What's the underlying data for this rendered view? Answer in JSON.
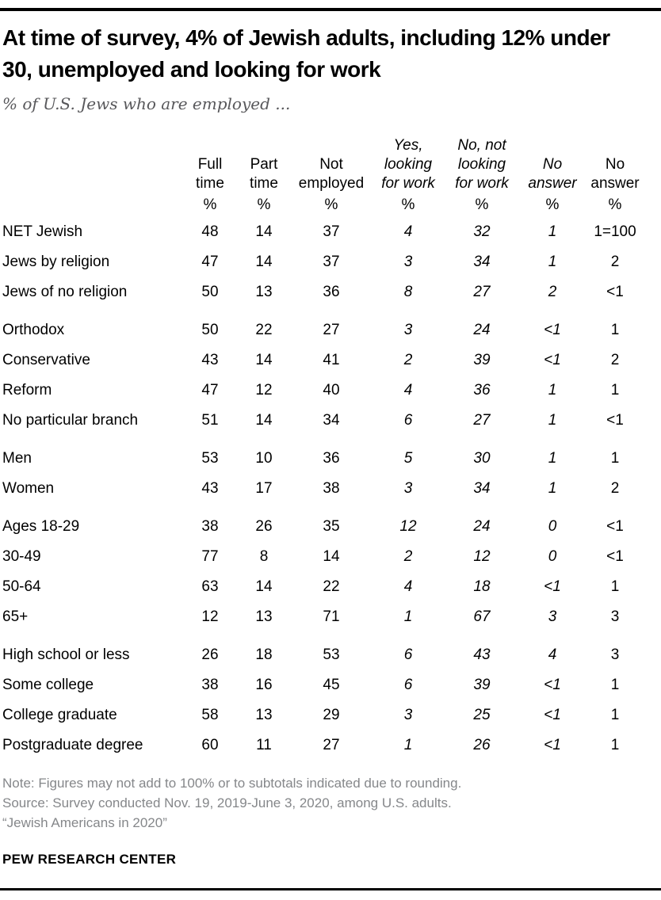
{
  "colors": {
    "rule": "#000000",
    "subtitle_gray": "#58585b",
    "note_gray": "#85878a"
  },
  "chart_data": {
    "type": "table",
    "title": "At time of survey, 4% of Jewish adults, including 12% under 30, unemployed and looking for work",
    "subtitle": "% of U.S. Jews who are employed ...",
    "unit": "%",
    "columns": [
      {
        "label": "Full time",
        "lines": [
          "Full",
          "time"
        ],
        "style": "bold"
      },
      {
        "label": "Part time",
        "lines": [
          "Part",
          "time"
        ],
        "style": "bold"
      },
      {
        "label": "Not employed",
        "lines": [
          "Not",
          "employed"
        ],
        "style": "bold"
      },
      {
        "label": "Yes, looking for work",
        "lines": [
          "Yes,",
          "looking",
          "for work"
        ],
        "style": "italic"
      },
      {
        "label": "No, not looking for work",
        "lines": [
          "No, not",
          "looking",
          "for work"
        ],
        "style": "italic"
      },
      {
        "label": "No answer",
        "lines": [
          "No",
          "answer"
        ],
        "style": "italic"
      },
      {
        "label": "No answer",
        "lines": [
          "No",
          "answer"
        ],
        "style": "bold"
      }
    ],
    "italic_value_columns": [
      3,
      4,
      5
    ],
    "groups": [
      {
        "rows": [
          {
            "label": "NET Jewish",
            "indent": false,
            "values": [
              "48",
              "14",
              "37",
              "4",
              "32",
              "1",
              "1=100"
            ]
          },
          {
            "label": "Jews by religion",
            "indent": true,
            "values": [
              "47",
              "14",
              "37",
              "3",
              "34",
              "1",
              "2"
            ]
          },
          {
            "label": "Jews of no religion",
            "indent": true,
            "values": [
              "50",
              "13",
              "36",
              "8",
              "27",
              "2",
              "<1"
            ]
          }
        ]
      },
      {
        "rows": [
          {
            "label": "Orthodox",
            "indent": false,
            "values": [
              "50",
              "22",
              "27",
              "3",
              "24",
              "<1",
              "1"
            ]
          },
          {
            "label": "Conservative",
            "indent": false,
            "values": [
              "43",
              "14",
              "41",
              "2",
              "39",
              "<1",
              "2"
            ]
          },
          {
            "label": "Reform",
            "indent": false,
            "values": [
              "47",
              "12",
              "40",
              "4",
              "36",
              "1",
              "1"
            ]
          },
          {
            "label": "No particular branch",
            "indent": false,
            "values": [
              "51",
              "14",
              "34",
              "6",
              "27",
              "1",
              "<1"
            ]
          }
        ]
      },
      {
        "rows": [
          {
            "label": "Men",
            "indent": false,
            "values": [
              "53",
              "10",
              "36",
              "5",
              "30",
              "1",
              "1"
            ]
          },
          {
            "label": "Women",
            "indent": false,
            "values": [
              "43",
              "17",
              "38",
              "3",
              "34",
              "1",
              "2"
            ]
          }
        ]
      },
      {
        "rows": [
          {
            "label": "Ages 18-29",
            "indent": false,
            "values": [
              "38",
              "26",
              "35",
              "12",
              "24",
              "0",
              "<1"
            ]
          },
          {
            "label": "30-49",
            "indent": false,
            "values": [
              "77",
              "8",
              "14",
              "2",
              "12",
              "0",
              "<1"
            ]
          },
          {
            "label": "50-64",
            "indent": false,
            "values": [
              "63",
              "14",
              "22",
              "4",
              "18",
              "<1",
              "1"
            ]
          },
          {
            "label": "65+",
            "indent": false,
            "values": [
              "12",
              "13",
              "71",
              "1",
              "67",
              "3",
              "3"
            ]
          }
        ]
      },
      {
        "rows": [
          {
            "label": "High school or less",
            "indent": false,
            "values": [
              "26",
              "18",
              "53",
              "6",
              "43",
              "4",
              "3"
            ]
          },
          {
            "label": "Some college",
            "indent": false,
            "values": [
              "38",
              "16",
              "45",
              "6",
              "39",
              "<1",
              "1"
            ]
          },
          {
            "label": "College graduate",
            "indent": false,
            "values": [
              "58",
              "13",
              "29",
              "3",
              "25",
              "<1",
              "1"
            ]
          },
          {
            "label": "Postgraduate degree",
            "indent": false,
            "values": [
              "60",
              "11",
              "27",
              "1",
              "26",
              "<1",
              "1"
            ]
          }
        ]
      }
    ]
  },
  "footer": {
    "note": "Note: Figures may not add to 100% or to subtotals indicated due to rounding.",
    "source": "Source: Survey conducted Nov. 19, 2019-June 3, 2020, among U.S. adults.",
    "citation": "“Jewish Americans in 2020”",
    "brand": "PEW RESEARCH CENTER"
  }
}
